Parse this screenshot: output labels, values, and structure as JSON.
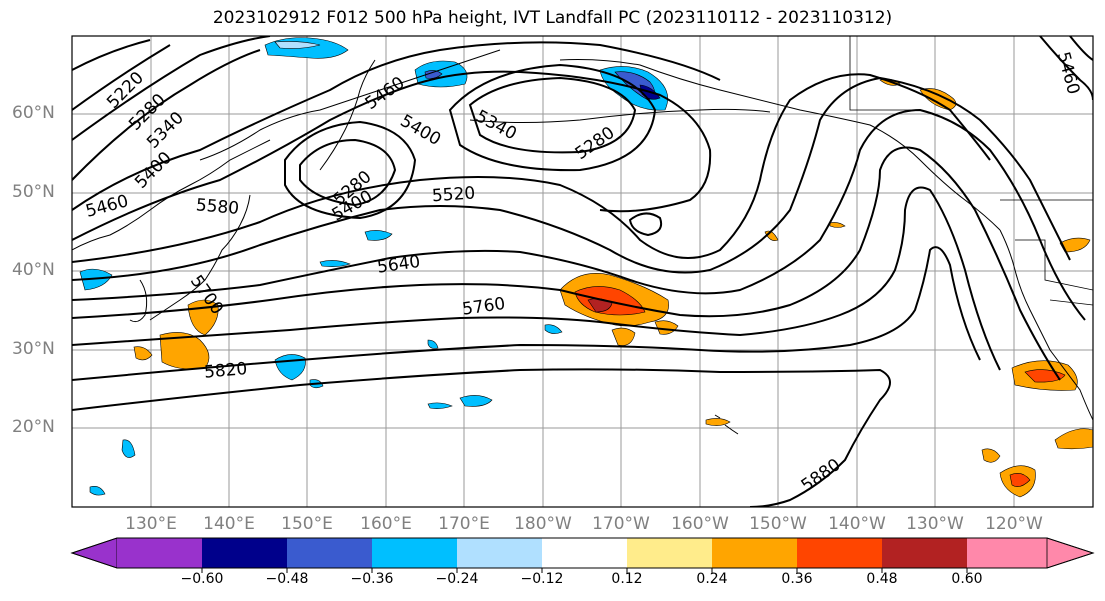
{
  "title": "2023102912 F012 500 hPa height, IVT Landfall PC (2023110112 - 2023110312)",
  "map": {
    "lat_labels": [
      "60°N",
      "50°N",
      "40°N",
      "30°N",
      "20°N"
    ],
    "lon_labels": [
      "130°E",
      "140°E",
      "150°E",
      "160°E",
      "170°E",
      "180°W",
      "170°W",
      "160°W",
      "150°W",
      "140°W",
      "130°W",
      "120°W"
    ],
    "contour_labels": [
      "5220",
      "5280",
      "5340",
      "5400",
      "5460",
      "5460",
      "5400",
      "5340",
      "5280",
      "5580",
      "5520",
      "5400",
      "5280",
      "5640",
      "5700",
      "5760",
      "5820",
      "5880",
      "5460"
    ],
    "contour_color": "#000000"
  },
  "colorbar": {
    "colors": [
      "#9932cc",
      "#00008b",
      "#3a5bcf",
      "#00bfff",
      "#b0e0ff",
      "#ffffff",
      "#ffec8b",
      "#ffa500",
      "#ff4500",
      "#b22222",
      "#ff88aa"
    ],
    "ticks": [
      "−0.60",
      "−0.48",
      "−0.36",
      "−0.24",
      "−0.12",
      "0.12",
      "0.24",
      "0.36",
      "0.48",
      "0.60"
    ]
  }
}
